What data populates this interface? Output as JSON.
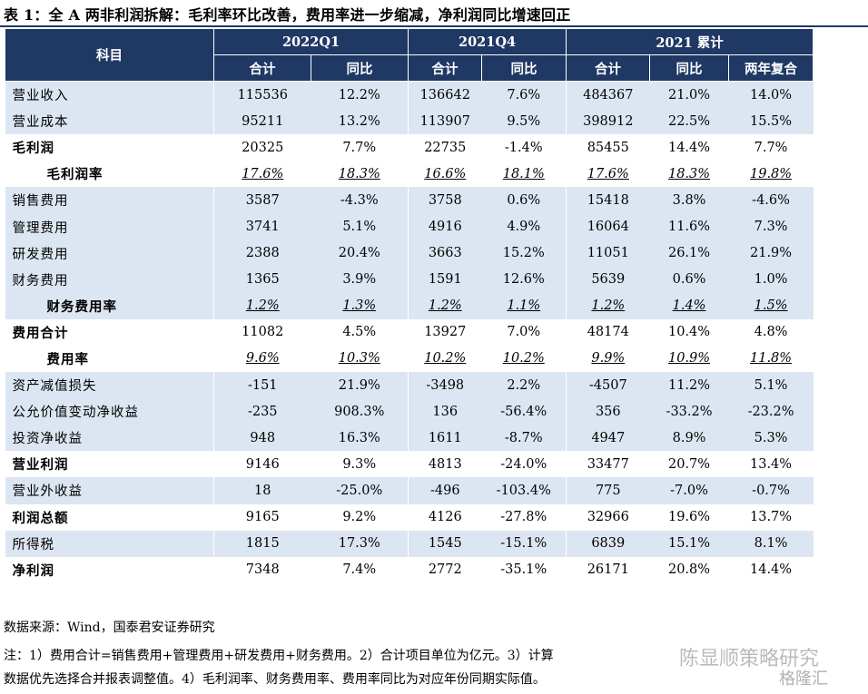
{
  "title": "表 1：全 A 两非利润拆解：毛利率环比改善，费用率进一步缩减，净利润同比增速回正",
  "header": {
    "subject": "科目",
    "groups": [
      "2022Q1",
      "2021Q4",
      "2021 累计"
    ],
    "subs": [
      "合计",
      "同比",
      "合计",
      "同比",
      "合计",
      "同比",
      "两年复合"
    ]
  },
  "rows": [
    {
      "label": "营业收入",
      "values": [
        "115536",
        "12.2%",
        "136642",
        "7.6%",
        "484367",
        "21.0%",
        "14.0%"
      ]
    },
    {
      "label": "营业成本",
      "values": [
        "95211",
        "13.2%",
        "113907",
        "9.5%",
        "398912",
        "22.5%",
        "15.5%"
      ]
    },
    {
      "label": "毛利润",
      "values": [
        "20325",
        "7.7%",
        "22735",
        "-1.4%",
        "85455",
        "14.4%",
        "7.7%"
      ]
    },
    {
      "label": "毛利润率",
      "values": [
        "17.6%",
        "18.3%",
        "16.6%",
        "18.1%",
        "17.6%",
        "18.3%",
        "19.8%"
      ]
    },
    {
      "label": "销售费用",
      "values": [
        "3587",
        "-4.3%",
        "3758",
        "0.6%",
        "15418",
        "3.8%",
        "-4.6%"
      ]
    },
    {
      "label": "管理费用",
      "values": [
        "3741",
        "5.1%",
        "4916",
        "4.9%",
        "16064",
        "11.6%",
        "7.3%"
      ]
    },
    {
      "label": "研发费用",
      "values": [
        "2388",
        "20.4%",
        "3663",
        "15.2%",
        "11051",
        "26.1%",
        "21.9%"
      ]
    },
    {
      "label": "财务费用",
      "values": [
        "1365",
        "3.9%",
        "1591",
        "12.6%",
        "5639",
        "0.6%",
        "1.0%"
      ]
    },
    {
      "label": "财务费用率",
      "values": [
        "1.2%",
        "1.3%",
        "1.2%",
        "1.1%",
        "1.2%",
        "1.4%",
        "1.5%"
      ]
    },
    {
      "label": "费用合计",
      "values": [
        "11082",
        "4.5%",
        "13927",
        "7.0%",
        "48174",
        "10.4%",
        "4.8%"
      ]
    },
    {
      "label": "费用率",
      "values": [
        "9.6%",
        "10.3%",
        "10.2%",
        "10.2%",
        "9.9%",
        "10.9%",
        "11.8%"
      ]
    },
    {
      "label": "资产减值损失",
      "values": [
        "-151",
        "21.9%",
        "-3498",
        "2.2%",
        "-4507",
        "11.2%",
        "5.1%"
      ]
    },
    {
      "label": "公允价值变动净收益",
      "values": [
        "-235",
        "908.3%",
        "136",
        "-56.4%",
        "356",
        "-33.2%",
        "-23.2%"
      ]
    },
    {
      "label": "投资净收益",
      "values": [
        "948",
        "16.3%",
        "1611",
        "-8.7%",
        "4947",
        "8.9%",
        "5.3%"
      ]
    },
    {
      "label": "营业利润",
      "values": [
        "9146",
        "9.3%",
        "4813",
        "-24.0%",
        "33477",
        "20.7%",
        "13.4%"
      ]
    },
    {
      "label": "营业外收益",
      "values": [
        "18",
        "-25.0%",
        "-496",
        "-103.4%",
        "775",
        "-7.0%",
        "-0.7%"
      ]
    },
    {
      "label": "利润总额",
      "values": [
        "9165",
        "9.2%",
        "4126",
        "-27.8%",
        "32966",
        "19.6%",
        "13.7%"
      ]
    },
    {
      "label": "所得税",
      "values": [
        "1815",
        "17.3%",
        "1545",
        "-15.1%",
        "6839",
        "15.1%",
        "8.1%"
      ]
    },
    {
      "label": "净利润",
      "values": [
        "7348",
        "7.4%",
        "2772",
        "-35.1%",
        "26171",
        "20.8%",
        "14.4%"
      ]
    }
  ],
  "source": "数据来源：Wind，国泰君安证券研究",
  "note_line1": "注：1）费用合计=销售费用+管理费用+研发费用+财务费用。2）合计项目单位为亿元。3）计算",
  "note_line2": "数据优先选择合并报表调整值。4）毛利润率、财务费用率、费用率同比为对应年份同期实际值。",
  "watermark": "陈显顺策略研究",
  "watermark_logo": "格隆汇"
}
